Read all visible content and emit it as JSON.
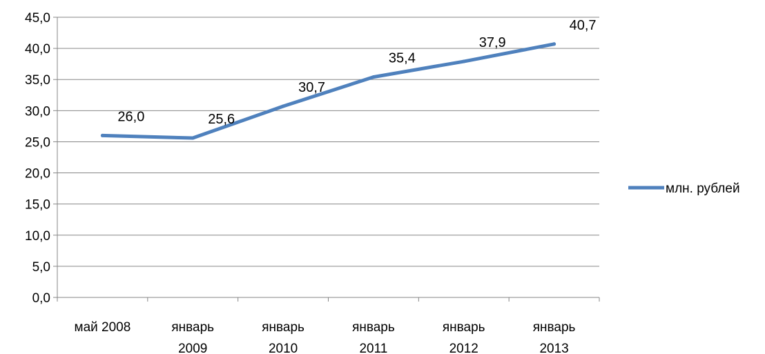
{
  "chart_data": {
    "type": "line",
    "categories": [
      [
        "май 2008"
      ],
      [
        "январь",
        "2009"
      ],
      [
        "январь",
        "2010"
      ],
      [
        "январь",
        "2011"
      ],
      [
        "январь",
        "2012"
      ],
      [
        "январь",
        "2013"
      ]
    ],
    "series": [
      {
        "name": "млн. рублей",
        "values": [
          26.0,
          25.6,
          30.7,
          35.4,
          37.9,
          40.7
        ],
        "labels": [
          "26,0",
          "25,6",
          "30,7",
          "35,4",
          "37,9",
          "40,7"
        ],
        "color": "#4F81BD"
      }
    ],
    "yticks": [
      "0,0",
      "5,0",
      "10,0",
      "15,0",
      "20,0",
      "25,0",
      "30,0",
      "35,0",
      "40,0",
      "45,0"
    ],
    "ylim": [
      0,
      45
    ],
    "ystep": 5,
    "grid": true,
    "legend": "right",
    "colors": {
      "grid": "#868686",
      "axis": "#868686"
    }
  }
}
